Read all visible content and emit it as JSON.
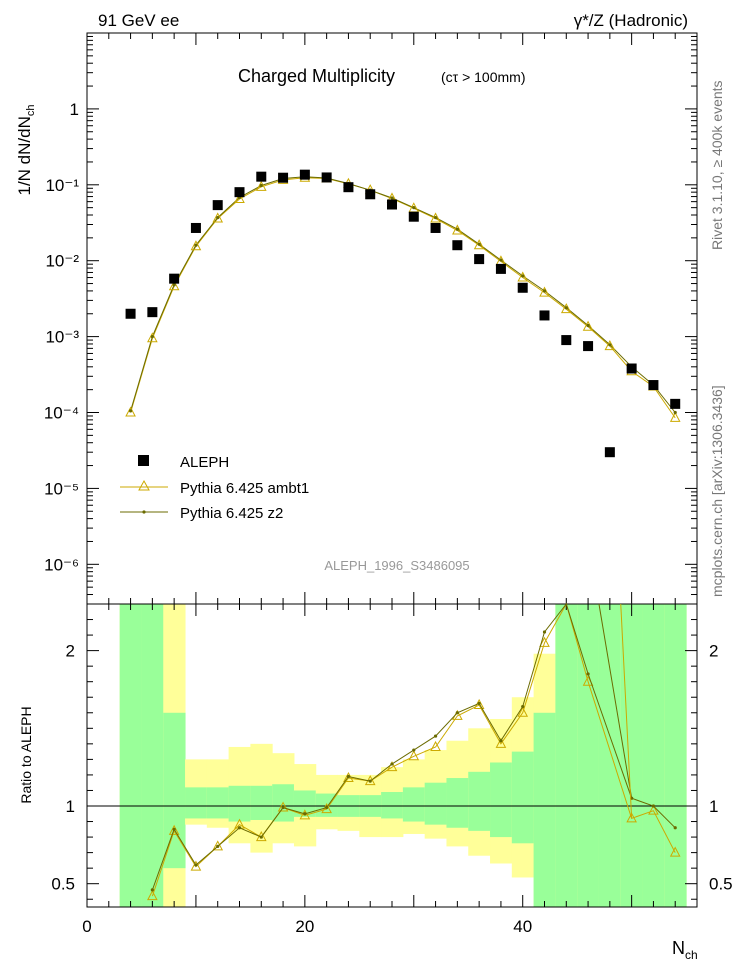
{
  "header": {
    "left": "91 GeV ee",
    "right": "γ*/Z (Hadronic)"
  },
  "side_labels": {
    "rivet": "Rivet 3.1.10, ≥ 400k events",
    "mcplots": "mcplots.cern.ch [arXiv:1306.3436]"
  },
  "chart_data": {
    "type": "scatter",
    "title": "Charged Multiplicity",
    "subtitle": "(cτ > 100mm)",
    "analysis_label": "ALEPH_1996_S3486095",
    "ylabel": "1/N dN/dN",
    "ylabel_sub": "ch",
    "xlabel": "N",
    "xlabel_sub": "ch",
    "ratio_ylabel": "Ratio to ALEPH",
    "xlim": [
      0,
      56
    ],
    "ylim": [
      3e-07,
      10
    ],
    "yscale": "log",
    "ratio_ylim": [
      0.35,
      2.3
    ],
    "x_ticks": [
      "0",
      "20",
      "40"
    ],
    "y_ticks": [
      "1",
      "10⁻¹",
      "10⁻²",
      "10⁻³",
      "10⁻⁴",
      "10⁻⁵",
      "10⁻⁶"
    ],
    "ratio_ticks": [
      "2",
      "1",
      "0.5"
    ],
    "legend_position": "lower-left",
    "legend": [
      {
        "name": "ALEPH",
        "color": "#000000",
        "marker": "square"
      },
      {
        "name": "Pythia 6.425 ambt1",
        "color": "#ccaa00",
        "marker": "triangle"
      },
      {
        "name": "Pythia 6.425 z2",
        "color": "#6b6b00",
        "marker": "dot"
      }
    ],
    "data": {
      "x": [
        4,
        6,
        8,
        10,
        12,
        14,
        16,
        18,
        20,
        22,
        24,
        26,
        28,
        30,
        32,
        34,
        36,
        38,
        40,
        42,
        44,
        46,
        48,
        50,
        52,
        54
      ],
      "y": [
        0.002,
        0.0021,
        0.0058,
        0.027,
        0.054,
        0.08,
        0.128,
        0.124,
        0.136,
        0.125,
        0.093,
        0.075,
        0.055,
        0.038,
        0.027,
        0.016,
        0.0105,
        0.0078,
        0.0044,
        0.0019,
        0.0009,
        0.00075,
        3e-05,
        0.00038,
        0.00023,
        0.00013
      ]
    },
    "series": [
      {
        "name": "Pythia 6.425 ambt1",
        "x": [
          4,
          6,
          8,
          10,
          12,
          14,
          16,
          18,
          20,
          22,
          24,
          26,
          28,
          30,
          32,
          34,
          36,
          38,
          40,
          42,
          44,
          46,
          48,
          50,
          52,
          54
        ],
        "y": [
          0.0001,
          0.00095,
          0.0046,
          0.0155,
          0.036,
          0.065,
          0.094,
          0.116,
          0.124,
          0.121,
          0.103,
          0.085,
          0.066,
          0.049,
          0.036,
          0.025,
          0.016,
          0.0098,
          0.006,
          0.0038,
          0.0023,
          0.00135,
          0.00075,
          0.00035,
          0.00022,
          8.5e-05
        ]
      },
      {
        "name": "Pythia 6.425 z2",
        "x": [
          4,
          6,
          8,
          10,
          12,
          14,
          16,
          18,
          20,
          22,
          24,
          26,
          28,
          30,
          32,
          34,
          36,
          38,
          40,
          42,
          44,
          46,
          48,
          50,
          52,
          54
        ],
        "y": [
          0.000105,
          0.001,
          0.0048,
          0.016,
          0.037,
          0.068,
          0.098,
          0.121,
          0.128,
          0.123,
          0.104,
          0.085,
          0.067,
          0.05,
          0.037,
          0.026,
          0.0165,
          0.0102,
          0.0063,
          0.004,
          0.0024,
          0.0014,
          0.00078,
          0.0004,
          0.00023,
          0.0001
        ]
      }
    ],
    "ratio": {
      "x": [
        6,
        8,
        10,
        12,
        14,
        16,
        18,
        20,
        22,
        24,
        26,
        28,
        30,
        32,
        34,
        36,
        38,
        40,
        42,
        44,
        46,
        50,
        52,
        54
      ],
      "ambt1": [
        0.42,
        0.84,
        0.61,
        0.74,
        0.88,
        0.8,
        0.99,
        0.94,
        0.98,
        1.18,
        1.16,
        1.25,
        1.32,
        1.38,
        1.58,
        1.65,
        1.4,
        1.6,
        2.05,
        2.4,
        1.8,
        0.92,
        0.97,
        0.7
      ],
      "z2": [
        0.46,
        0.85,
        0.62,
        0.74,
        0.86,
        0.8,
        0.99,
        0.95,
        0.99,
        1.19,
        1.16,
        1.27,
        1.36,
        1.45,
        1.6,
        1.66,
        1.42,
        1.64,
        2.12,
        2.5,
        1.85,
        1.05,
        1.0,
        0.86
      ]
    },
    "bands": {
      "x_edges": [
        3,
        5,
        7,
        9,
        11,
        13,
        15,
        17,
        19,
        21,
        23,
        25,
        27,
        29,
        31,
        33,
        35,
        37,
        39,
        41,
        43,
        45,
        47,
        49,
        51,
        53,
        55
      ],
      "inner_lo": [
        0.3,
        0.3,
        0.6,
        0.92,
        0.92,
        0.9,
        0.91,
        0.9,
        0.93,
        0.93,
        0.93,
        0.93,
        0.92,
        0.9,
        0.88,
        0.86,
        0.84,
        0.8,
        0.76,
        0.3,
        0.3,
        0.3,
        0.3,
        0.3,
        0.3,
        0.3
      ],
      "inner_hi": [
        2.4,
        2.4,
        1.6,
        1.12,
        1.12,
        1.13,
        1.13,
        1.14,
        1.1,
        1.08,
        1.07,
        1.07,
        1.09,
        1.12,
        1.15,
        1.18,
        1.22,
        1.28,
        1.35,
        1.6,
        2.4,
        2.4,
        2.4,
        2.4,
        2.4,
        2.4
      ],
      "outer_lo": [
        0.3,
        0.3,
        0.3,
        0.88,
        0.86,
        0.76,
        0.7,
        0.76,
        0.74,
        0.85,
        0.84,
        0.8,
        0.8,
        0.82,
        0.79,
        0.74,
        0.68,
        0.63,
        0.54,
        0.3,
        0.3,
        0.3,
        0.3,
        0.3,
        0.3,
        0.3
      ],
      "outer_hi": [
        2.4,
        2.4,
        2.4,
        1.3,
        1.3,
        1.38,
        1.4,
        1.34,
        1.27,
        1.2,
        1.2,
        1.2,
        1.25,
        1.3,
        1.36,
        1.42,
        1.5,
        1.56,
        1.7,
        1.98,
        2.4,
        2.4,
        2.4,
        2.4,
        2.4,
        2.4
      ]
    },
    "colors": {
      "data": "#000000",
      "ambt1": "#ccaa00",
      "z2": "#6b6b00",
      "band_inner": "#99ff99",
      "band_outer": "#ffff99",
      "axes": "#000000",
      "side_text": "#777777",
      "analysis_label": "#999999"
    }
  }
}
